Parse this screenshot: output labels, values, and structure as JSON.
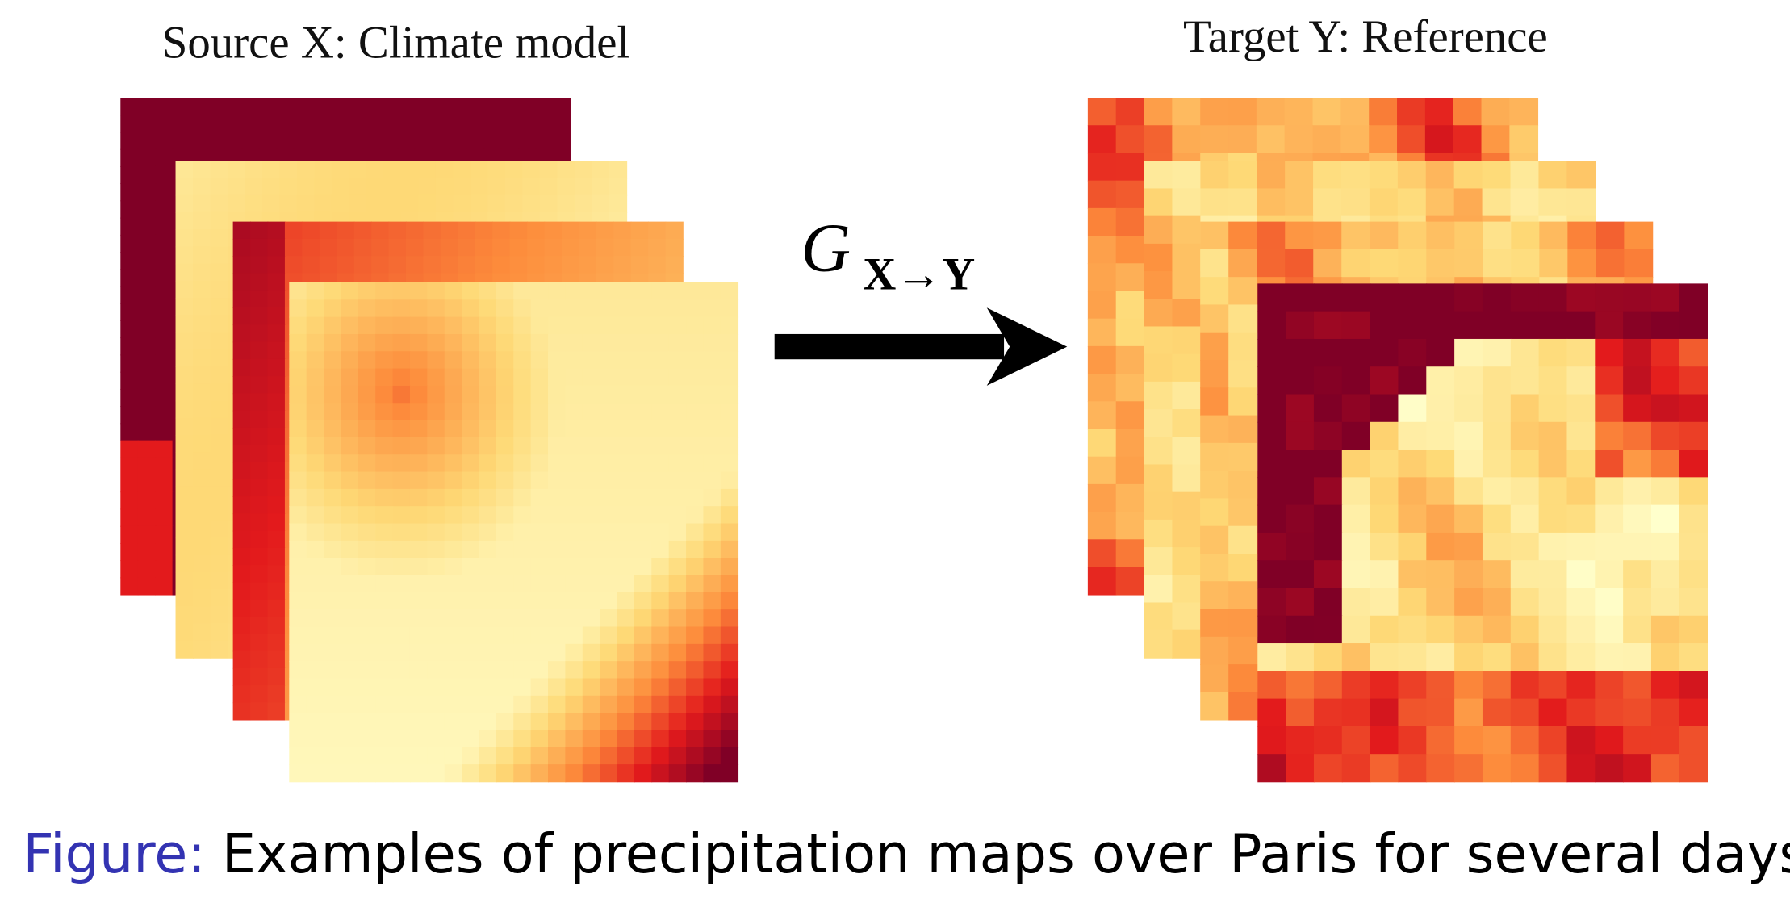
{
  "source_title": "Source X: Climate model",
  "target_title": "Target Y: Reference",
  "mapping_label": {
    "symbol": "G",
    "subscript": "X→Y"
  },
  "caption": {
    "label": "Figure:",
    "text": "Examples of precipitation maps over Paris for several days."
  }
}
